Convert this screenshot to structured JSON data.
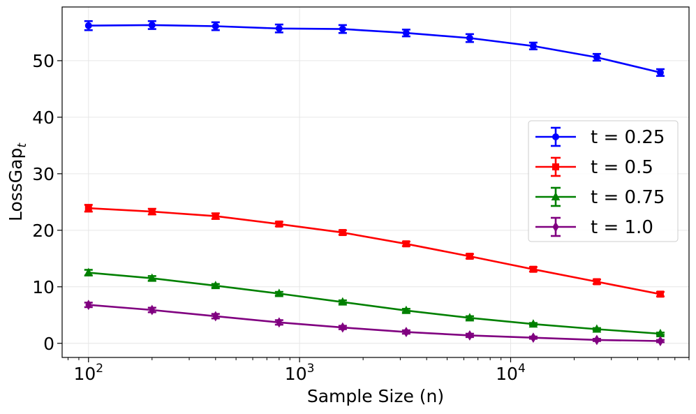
{
  "chart_data": {
    "type": "line",
    "title": "",
    "xlabel": "Sample Size (n)",
    "ylabel_main": "LossGap",
    "ylabel_sub": "t",
    "xscale": "log",
    "xlim": [
      75,
      70000
    ],
    "ylim": [
      -2.5,
      59.5
    ],
    "grid": true,
    "legend_position": "center-right",
    "x": [
      100,
      200,
      400,
      800,
      1600,
      3200,
      6400,
      12800,
      25600,
      51200
    ],
    "x_ticks": [
      {
        "value": 100,
        "base": "10",
        "exp": "2"
      },
      {
        "value": 1000,
        "base": "10",
        "exp": "3"
      },
      {
        "value": 10000,
        "base": "10",
        "exp": "4"
      }
    ],
    "y_ticks": [
      0,
      10,
      20,
      30,
      40,
      50
    ],
    "series": [
      {
        "name": "t = 0.25",
        "color": "#0000ff",
        "marker": "circle",
        "values": [
          56.2,
          56.3,
          56.1,
          55.7,
          55.6,
          54.9,
          54.0,
          52.6,
          50.6,
          47.9
        ],
        "errors": [
          0.8,
          0.7,
          0.7,
          0.7,
          0.7,
          0.6,
          0.7,
          0.6,
          0.6,
          0.6
        ]
      },
      {
        "name": "t = 0.5",
        "color": "#ff0000",
        "marker": "square",
        "values": [
          23.9,
          23.3,
          22.5,
          21.1,
          19.6,
          17.6,
          15.4,
          13.1,
          10.9,
          8.7
        ],
        "errors": [
          0.6,
          0.5,
          0.5,
          0.4,
          0.4,
          0.4,
          0.4,
          0.4,
          0.4,
          0.4
        ]
      },
      {
        "name": "t = 0.75",
        "color": "#008000",
        "marker": "triangle",
        "values": [
          12.5,
          11.5,
          10.2,
          8.8,
          7.3,
          5.8,
          4.5,
          3.4,
          2.5,
          1.7
        ],
        "errors": [
          0.5,
          0.4,
          0.3,
          0.3,
          0.3,
          0.3,
          0.3,
          0.2,
          0.2,
          0.2
        ]
      },
      {
        "name": "t = 1.0",
        "color": "#800080",
        "marker": "diamond",
        "values": [
          6.8,
          5.9,
          4.8,
          3.7,
          2.8,
          2.0,
          1.4,
          1.0,
          0.6,
          0.4
        ],
        "errors": [
          0.4,
          0.4,
          0.4,
          0.4,
          0.3,
          0.3,
          0.3,
          0.2,
          0.2,
          0.2
        ]
      }
    ]
  }
}
